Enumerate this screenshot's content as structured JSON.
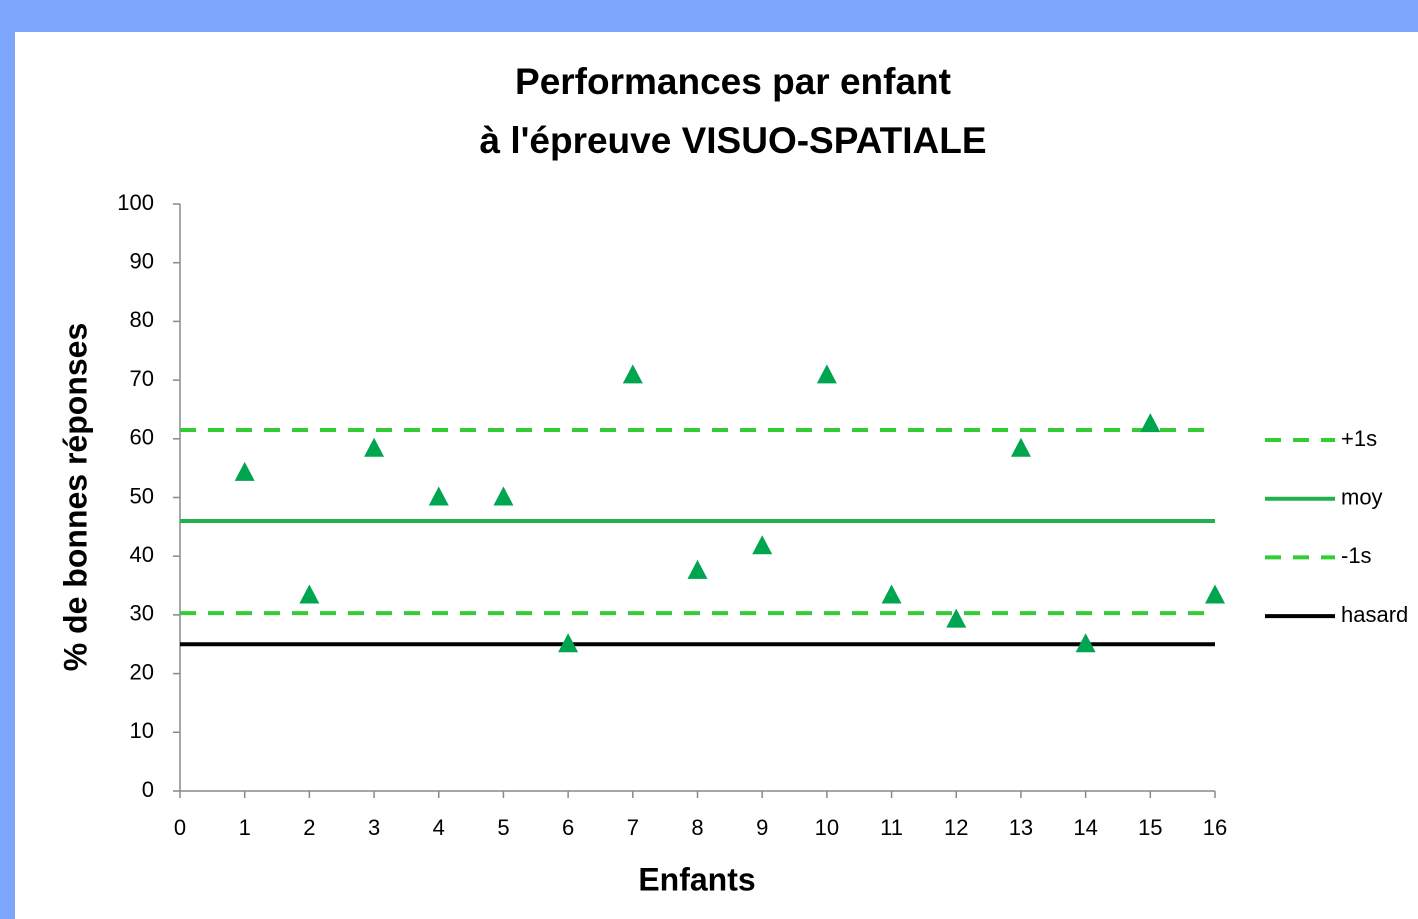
{
  "chart_data": {
    "type": "scatter",
    "title": [
      "Performances par enfant",
      "à l'épreuve VISUO-SPATIALE"
    ],
    "x_label": "Enfants",
    "y_label": "% de bonnes réponses",
    "x": [
      1,
      2,
      3,
      4,
      5,
      6,
      7,
      8,
      9,
      10,
      11,
      12,
      13,
      14,
      15,
      16
    ],
    "values": [
      54.2,
      33.3,
      58.3,
      50,
      50,
      25,
      70.8,
      37.5,
      41.7,
      70.8,
      33.3,
      29.2,
      58.3,
      25,
      62.5,
      33.3
    ],
    "color": "#00a550",
    "lines": [
      {
        "name": "+1s",
        "color": "#33cc33",
        "dashed": true,
        "x": [
          0,
          16
        ],
        "values": [
          61.5,
          61.5
        ]
      },
      {
        "name": "moy",
        "color": "#22b14c",
        "dashed": false,
        "x": [
          0,
          16
        ],
        "values": [
          46,
          46
        ]
      },
      {
        "name": "-1s",
        "color": "#33cc33",
        "dashed": true,
        "x": [
          0,
          16
        ],
        "values": [
          30.3,
          30.3
        ]
      },
      {
        "name": "hasard",
        "color": "#000000",
        "dashed": false,
        "x": [
          0,
          16
        ],
        "values": [
          25,
          25
        ]
      }
    ],
    "xlim": [
      0,
      16
    ],
    "xticks": [
      0,
      1,
      2,
      3,
      4,
      5,
      6,
      7,
      8,
      9,
      10,
      11,
      12,
      13,
      14,
      15,
      16
    ],
    "ylim": [
      0,
      100
    ],
    "yticks": [
      0,
      10,
      20,
      30,
      40,
      50,
      60,
      70,
      80,
      90,
      100
    ],
    "grid": false,
    "legend": "right"
  }
}
